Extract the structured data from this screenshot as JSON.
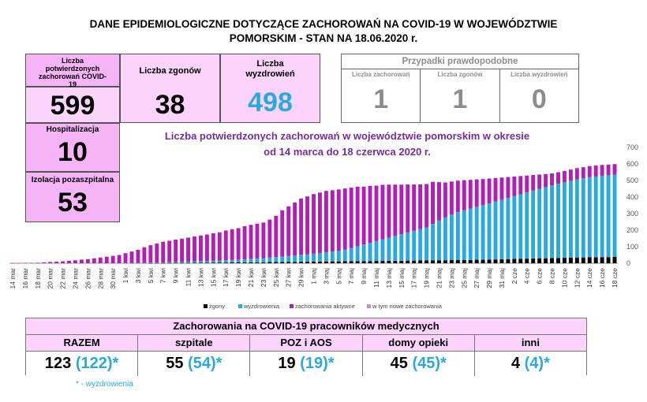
{
  "header": {
    "line1": "DANE EPIDEMIOLOGICZNE DOTYCZĄCE ZACHOROWAŃ NA COVID-19 W WOJEWÓDZTWIE",
    "line2": "POMORSKIM - STAN NA 18.06.2020 r."
  },
  "stats": {
    "confirmed_label": "Liczba potwierdzonych zachorowań COVID-19",
    "confirmed": "599",
    "deaths_label": "Liczba zgonów",
    "deaths": "38",
    "recovered_label": "Liczba wyzdrowień",
    "recovered": "498",
    "hosp_label": "Hospitalizacja",
    "hosp": "10",
    "isolation_label": "Izolacja pozaszpitalna",
    "isolation": "53"
  },
  "probable": {
    "title": "Przypadki prawdopodobne",
    "cases_label": "Liczba zachorowań",
    "cases": "1",
    "deaths_label": "Liczba zgonów",
    "deaths": "1",
    "recovered_label": "Liczba wyzdrowień",
    "recovered": "0"
  },
  "chart_title": {
    "line1": "Liczba potwierdzonych zachorowań w województwie pomorskim w okresie",
    "line2": "od 14 marca do 18 czerwca 2020 r."
  },
  "colors": {
    "deaths": "#000000",
    "recovered": "#2aa8e0",
    "active": "#b21fb5",
    "new": "#c98ac9"
  },
  "chart_data": {
    "type": "bar",
    "stacked": true,
    "ylim": [
      0,
      700
    ],
    "yticks": [
      0,
      100,
      200,
      300,
      400,
      500,
      600,
      700
    ],
    "grid": false,
    "legend_position": "bottom",
    "tick_labels": [
      "14 mar",
      "16 mar",
      "18 mar",
      "20 mar",
      "22 mar",
      "24 mar",
      "26 mar",
      "28 mar",
      "30 mar",
      "1 kwi",
      "3 kwi",
      "5 kwi",
      "7 kwi",
      "9 kwi",
      "11 kwi",
      "13 kwi",
      "15 kwi",
      "17 kwi",
      "19 kwi",
      "21 kwi",
      "23 kwi",
      "25 kwi",
      "27 kwi",
      "29 kwi",
      "1 maj",
      "3 maj",
      "5 maj",
      "7 maj",
      "9 maj",
      "11 maj",
      "13 maj",
      "15 maj",
      "17 maj",
      "19 maj",
      "21 maj",
      "23 maj",
      "25 maj",
      "27 maj",
      "29 maj",
      "31 maj",
      "2 cze",
      "4 cze",
      "6 cze",
      "8 cze",
      "10 cze",
      "12 cze",
      "14 cze",
      "16 cze",
      "18 cze"
    ],
    "series": [
      {
        "name": "zgony",
        "values": [
          0,
          0,
          0,
          0,
          0,
          0,
          0,
          0,
          0,
          0,
          0,
          0,
          0,
          0,
          0,
          0,
          0,
          0,
          0,
          0,
          0,
          0,
          1,
          1,
          1,
          1,
          2,
          2,
          2,
          3,
          3,
          3,
          4,
          4,
          4,
          5,
          5,
          5,
          6,
          6,
          6,
          7,
          7,
          7,
          8,
          8,
          9,
          9,
          10,
          10,
          11,
          11,
          11,
          12,
          12,
          13,
          13,
          13,
          14,
          14,
          15,
          15,
          15,
          16,
          16,
          17,
          17,
          17,
          18,
          18,
          19,
          19,
          20,
          20,
          21,
          21,
          22,
          23,
          24,
          25,
          26,
          27,
          28,
          29,
          30,
          30,
          31,
          32,
          33,
          34,
          35,
          35,
          36,
          36,
          37,
          37,
          38
        ]
      },
      {
        "name": "wyzdrowienia",
        "values": [
          0,
          0,
          0,
          0,
          0,
          0,
          0,
          0,
          0,
          0,
          0,
          0,
          0,
          0,
          0,
          0,
          0,
          0,
          1,
          1,
          2,
          2,
          3,
          3,
          4,
          5,
          6,
          7,
          8,
          9,
          10,
          11,
          12,
          13,
          14,
          15,
          17,
          19,
          21,
          23,
          25,
          27,
          30,
          33,
          36,
          39,
          42,
          45,
          48,
          52,
          56,
          60,
          65,
          70,
          80,
          90,
          100,
          110,
          120,
          130,
          140,
          150,
          160,
          170,
          180,
          190,
          200,
          220,
          240,
          260,
          275,
          290,
          300,
          310,
          320,
          330,
          340,
          350,
          360,
          370,
          380,
          390,
          400,
          410,
          420,
          430,
          440,
          448,
          456,
          464,
          472,
          478,
          484,
          488,
          492,
          495,
          498
        ]
      },
      {
        "name": "zachorowania aktywne",
        "values": [
          1,
          1,
          2,
          2,
          3,
          5,
          8,
          10,
          12,
          15,
          18,
          22,
          25,
          30,
          35,
          40,
          45,
          50,
          60,
          70,
          80,
          95,
          105,
          115,
          125,
          130,
          135,
          140,
          145,
          150,
          155,
          160,
          165,
          170,
          180,
          185,
          190,
          200,
          205,
          210,
          215,
          230,
          250,
          280,
          300,
          320,
          340,
          350,
          360,
          365,
          370,
          370,
          370,
          370,
          365,
          360,
          350,
          345,
          335,
          330,
          320,
          310,
          300,
          290,
          280,
          270,
          262,
          255,
          232,
          210,
          200,
          190,
          182,
          174,
          166,
          158,
          150,
          142,
          134,
          126,
          118,
          110,
          102,
          94,
          86,
          79,
          72,
          70,
          69,
          68,
          68,
          67,
          67,
          67,
          65,
          64,
          63
        ]
      },
      {
        "name": "w tym nowe zachorowania",
        "values": [
          1,
          0,
          1,
          0,
          1,
          2,
          3,
          2,
          2,
          3,
          3,
          4,
          3,
          5,
          5,
          5,
          5,
          5,
          10,
          10,
          10,
          15,
          10,
          10,
          10,
          5,
          5,
          5,
          5,
          5,
          5,
          5,
          5,
          5,
          10,
          5,
          5,
          10,
          5,
          5,
          5,
          15,
          20,
          30,
          20,
          20,
          20,
          10,
          10,
          5,
          5,
          5,
          5,
          5,
          5,
          5,
          5,
          5,
          5,
          5,
          5,
          5,
          5,
          5,
          5,
          5,
          5,
          5,
          5,
          5,
          5,
          5,
          5,
          5,
          5,
          5,
          5,
          5,
          5,
          5,
          5,
          5,
          5,
          5,
          5,
          5,
          5,
          5,
          5,
          5,
          5,
          5,
          5,
          5,
          5,
          5,
          5
        ]
      }
    ]
  },
  "legend": [
    "zgony",
    "wyzdrowienia",
    "zachorowania aktywne",
    "w tym nowe zachorowania"
  ],
  "medical": {
    "title": "Zachorowania na COVID-19 pracowników medycznych",
    "headers": [
      "RAZEM",
      "szpitale",
      "POZ i AOS",
      "domy opieki",
      "inni"
    ],
    "values": [
      {
        "main": "123",
        "rec": "(122)*"
      },
      {
        "main": "55",
        "rec": "(54)*"
      },
      {
        "main": "19",
        "rec": "(19)*"
      },
      {
        "main": "45",
        "rec": "(45)*"
      },
      {
        "main": "4",
        "rec": "(4)*"
      }
    ],
    "footnote_star": "*",
    "footnote_text": "- wyzdrowienia"
  }
}
